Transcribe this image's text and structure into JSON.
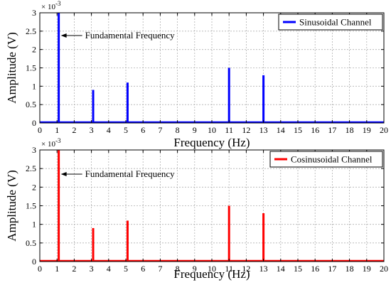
{
  "chart_data": [
    {
      "type": "bar",
      "x": [
        1.1,
        3.1,
        5.1,
        11,
        13
      ],
      "values": [
        0.003,
        0.0009,
        0.0011,
        0.0015,
        0.0013
      ],
      "series": [
        {
          "name": "Sinusoidal Channel",
          "color": "#0000ff",
          "values": [
            0.003,
            0.0009,
            0.0011,
            0.0015,
            0.0013
          ]
        }
      ],
      "xlabel": "Frequency (Hz)",
      "ylabel": "Amplitude (V)",
      "xlim": [
        0,
        20
      ],
      "ylim": [
        0,
        0.003
      ],
      "xticks": [
        "0",
        "1",
        "2",
        "3",
        "4",
        "5",
        "6",
        "7",
        "8",
        "9",
        "10",
        "11",
        "12",
        "13",
        "14",
        "15",
        "16",
        "17",
        "18",
        "19",
        "20"
      ],
      "yticks": [
        "0",
        "0.5",
        "1",
        "1.5",
        "2",
        "2.5",
        "3"
      ],
      "y_multiplier": "10",
      "y_multiplier_exp": "-3",
      "annotation": "Fundamental Frequency",
      "legend_position": "top-right",
      "grid": true
    },
    {
      "type": "bar",
      "x": [
        1.1,
        3.1,
        5.1,
        11,
        13
      ],
      "values": [
        0.003,
        0.0009,
        0.0011,
        0.0015,
        0.0013
      ],
      "series": [
        {
          "name": "Cosinusoidal Channel",
          "color": "#ff0000",
          "values": [
            0.003,
            0.0009,
            0.0011,
            0.0015,
            0.0013
          ]
        }
      ],
      "xlabel": "Frequency (Hz)",
      "ylabel": "Amplitude (V)",
      "xlim": [
        0,
        20
      ],
      "ylim": [
        0,
        0.003
      ],
      "xticks": [
        "0",
        "1",
        "2",
        "3",
        "4",
        "5",
        "6",
        "7",
        "8",
        "9",
        "10",
        "11",
        "12",
        "13",
        "14",
        "15",
        "16",
        "17",
        "18",
        "19",
        "20"
      ],
      "yticks": [
        "0",
        "0.5",
        "1",
        "1.5",
        "2",
        "2.5",
        "3"
      ],
      "y_multiplier": "10",
      "y_multiplier_exp": "-3",
      "annotation": "Fundamental Frequency",
      "legend_position": "top-right",
      "grid": true
    }
  ]
}
